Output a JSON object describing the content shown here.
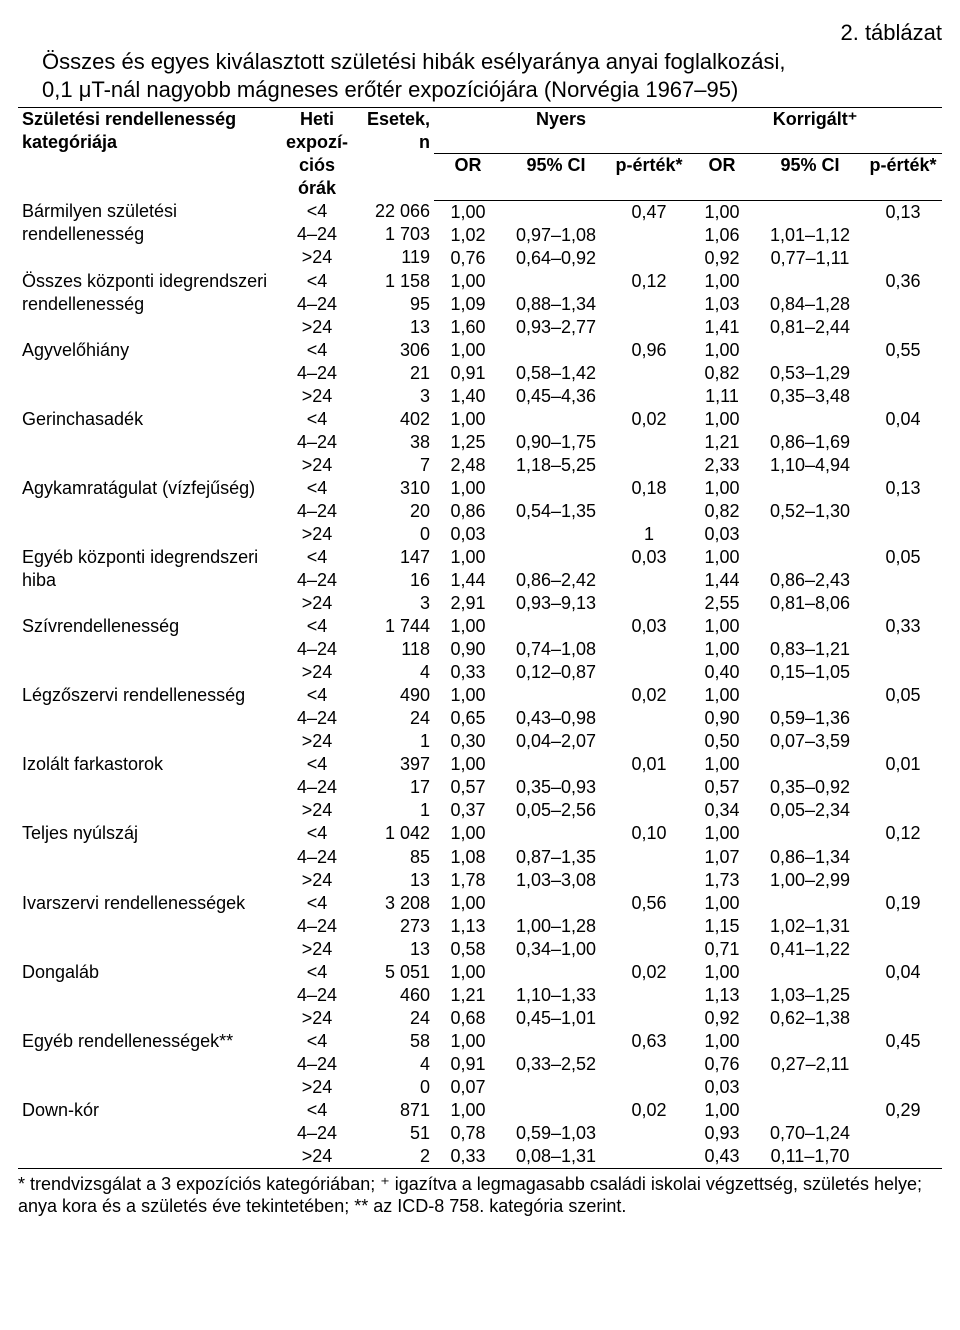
{
  "table_label": "2. táblázat",
  "title_line1": "Összes és egyes kiválasztott születési hibák esélyaránya anyai foglalkozási,",
  "title_line2": "0,1 μT-nál nagyobb mágneses erőtér expozíciójára (Norvégia 1967–95)",
  "header": {
    "category": "Születési rendellenesség\nkategóriája",
    "expo": "Heti\nexpozí-\nciós órák",
    "cases": "Esetek, n",
    "crude": "Nyers",
    "adjusted": "Korrigált⁺",
    "or": "OR",
    "ci": "95% CI",
    "p": "p-érték*"
  },
  "rows": [
    {
      "cat": "Bármilyen születési\nrendellenesség",
      "expo": [
        "<4",
        "4–24",
        ">24"
      ],
      "n": [
        "22 066",
        "1 703",
        "119"
      ],
      "cor": [
        "1,00",
        "1,02",
        "0,76"
      ],
      "cci": [
        "",
        "0,97–1,08",
        "0,64–0,92"
      ],
      "cp": [
        "0,47",
        "",
        ""
      ],
      "aor": [
        "1,00",
        "1,06",
        "0,92"
      ],
      "aci": [
        "",
        "1,01–1,12",
        "0,77–1,11"
      ],
      "ap": [
        "0,13",
        "",
        ""
      ]
    },
    {
      "cat": "Összes központi idegrendszeri\nrendellenesség",
      "expo": [
        "<4",
        "4–24",
        ">24"
      ],
      "n": [
        "1 158",
        "95",
        "13"
      ],
      "cor": [
        "1,00",
        "1,09",
        "1,60"
      ],
      "cci": [
        "",
        "0,88–1,34",
        "0,93–2,77"
      ],
      "cp": [
        "0,12",
        "",
        ""
      ],
      "aor": [
        "1,00",
        "1,03",
        "1,41"
      ],
      "aci": [
        "",
        "0,84–1,28",
        "0,81–2,44"
      ],
      "ap": [
        "0,36",
        "",
        ""
      ]
    },
    {
      "cat": "Agyvelőhiány",
      "expo": [
        "<4",
        "4–24",
        ">24"
      ],
      "n": [
        "306",
        "21",
        "3"
      ],
      "cor": [
        "1,00",
        "0,91",
        "1,40"
      ],
      "cci": [
        "",
        "0,58–1,42",
        "0,45–4,36"
      ],
      "cp": [
        "0,96",
        "",
        ""
      ],
      "aor": [
        "1,00",
        "0,82",
        "1,11"
      ],
      "aci": [
        "",
        "0,53–1,29",
        "0,35–3,48"
      ],
      "ap": [
        "0,55",
        "",
        ""
      ]
    },
    {
      "cat": "Gerinchasadék",
      "expo": [
        "<4",
        "4–24",
        ">24"
      ],
      "n": [
        "402",
        "38",
        "7"
      ],
      "cor": [
        "1,00",
        "1,25",
        "2,48"
      ],
      "cci": [
        "",
        "0,90–1,75",
        "1,18–5,25"
      ],
      "cp": [
        "0,02",
        "",
        ""
      ],
      "aor": [
        "1,00",
        "1,21",
        "2,33"
      ],
      "aci": [
        "",
        "0,86–1,69",
        "1,10–4,94"
      ],
      "ap": [
        "0,04",
        "",
        ""
      ]
    },
    {
      "cat": "Agykamratágulat (vízfejűség)",
      "expo": [
        "<4",
        "4–24",
        ">24"
      ],
      "n": [
        "310",
        "20",
        "0"
      ],
      "cor": [
        "1,00",
        "0,86",
        "0,03"
      ],
      "cci": [
        "",
        "0,54–1,35",
        ""
      ],
      "cp": [
        "0,18",
        "",
        "1"
      ],
      "aor": [
        "1,00",
        "0,82",
        "0,03"
      ],
      "aci": [
        "",
        "0,52–1,30",
        ""
      ],
      "ap": [
        "0,13",
        "",
        ""
      ]
    },
    {
      "cat": "Egyéb központi idegrendszeri\nhiba",
      "expo": [
        "<4",
        "4–24",
        ">24"
      ],
      "n": [
        "147",
        "16",
        "3"
      ],
      "cor": [
        "1,00",
        "1,44",
        "2,91"
      ],
      "cci": [
        "",
        "0,86–2,42",
        "0,93–9,13"
      ],
      "cp": [
        "0,03",
        "",
        ""
      ],
      "aor": [
        "1,00",
        "1,44",
        "2,55"
      ],
      "aci": [
        "",
        "0,86–2,43",
        "0,81–8,06"
      ],
      "ap": [
        "0,05",
        "",
        ""
      ]
    },
    {
      "cat": "Szívrendellenesség",
      "expo": [
        "<4",
        "4–24",
        ">24"
      ],
      "n": [
        "1 744",
        "118",
        "4"
      ],
      "cor": [
        "1,00",
        "0,90",
        "0,33"
      ],
      "cci": [
        "",
        "0,74–1,08",
        "0,12–0,87"
      ],
      "cp": [
        "0,03",
        "",
        ""
      ],
      "aor": [
        "1,00",
        "1,00",
        "0,40"
      ],
      "aci": [
        "",
        "0,83–1,21",
        "0,15–1,05"
      ],
      "ap": [
        "0,33",
        "",
        ""
      ]
    },
    {
      "cat": "Légzőszervi rendellenesség",
      "expo": [
        "<4",
        "4–24",
        ">24"
      ],
      "n": [
        "490",
        "24",
        "1"
      ],
      "cor": [
        "1,00",
        "0,65",
        "0,30"
      ],
      "cci": [
        "",
        "0,43–0,98",
        "0,04–2,07"
      ],
      "cp": [
        "0,02",
        "",
        ""
      ],
      "aor": [
        "1,00",
        "0,90",
        "0,50"
      ],
      "aci": [
        "",
        "0,59–1,36",
        "0,07–3,59"
      ],
      "ap": [
        "0,05",
        "",
        ""
      ]
    },
    {
      "cat": "Izolált farkastorok",
      "expo": [
        "<4",
        "4–24",
        ">24"
      ],
      "n": [
        "397",
        "17",
        "1"
      ],
      "cor": [
        "1,00",
        "0,57",
        "0,37"
      ],
      "cci": [
        "",
        "0,35–0,93",
        "0,05–2,56"
      ],
      "cp": [
        "0,01",
        "",
        ""
      ],
      "aor": [
        "1,00",
        "0,57",
        "0,34"
      ],
      "aci": [
        "",
        "0,35–0,92",
        "0,05–2,34"
      ],
      "ap": [
        "0,01",
        "",
        ""
      ]
    },
    {
      "cat": "Teljes nyúlszáj",
      "expo": [
        "<4",
        "4–24",
        ">24"
      ],
      "n": [
        "1 042",
        "85",
        "13"
      ],
      "cor": [
        "1,00",
        "1,08",
        "1,78"
      ],
      "cci": [
        "",
        "0,87–1,35",
        "1,03–3,08"
      ],
      "cp": [
        "0,10",
        "",
        ""
      ],
      "aor": [
        "1,00",
        "1,07",
        "1,73"
      ],
      "aci": [
        "",
        "0,86–1,34",
        "1,00–2,99"
      ],
      "ap": [
        "0,12",
        "",
        ""
      ]
    },
    {
      "cat": "Ivarszervi rendellenességek",
      "expo": [
        "<4",
        "4–24",
        ">24"
      ],
      "n": [
        "3 208",
        "273",
        "13"
      ],
      "cor": [
        "1,00",
        "1,13",
        "0,58"
      ],
      "cci": [
        "",
        "1,00–1,28",
        "0,34–1,00"
      ],
      "cp": [
        "0,56",
        "",
        ""
      ],
      "aor": [
        "1,00",
        "1,15",
        "0,71"
      ],
      "aci": [
        "",
        "1,02–1,31",
        "0,41–1,22"
      ],
      "ap": [
        "0,19",
        "",
        ""
      ]
    },
    {
      "cat": "Dongaláb",
      "expo": [
        "<4",
        "4–24",
        ">24"
      ],
      "n": [
        "5 051",
        "460",
        "24"
      ],
      "cor": [
        "1,00",
        "1,21",
        "0,68"
      ],
      "cci": [
        "",
        "1,10–1,33",
        "0,45–1,01"
      ],
      "cp": [
        "0,02",
        "",
        ""
      ],
      "aor": [
        "1,00",
        "1,13",
        "0,92"
      ],
      "aci": [
        "",
        "1,03–1,25",
        "0,62–1,38"
      ],
      "ap": [
        "0,04",
        "",
        ""
      ]
    },
    {
      "cat": "Egyéb rendellenességek**",
      "expo": [
        "<4",
        "4–24",
        ">24"
      ],
      "n": [
        "58",
        "4",
        "0"
      ],
      "cor": [
        "1,00",
        "0,91",
        "0,07"
      ],
      "cci": [
        "",
        "0,33–2,52",
        ""
      ],
      "cp": [
        "0,63",
        "",
        ""
      ],
      "aor": [
        "1,00",
        "0,76",
        "0,03"
      ],
      "aci": [
        "",
        "0,27–2,11",
        ""
      ],
      "ap": [
        "0,45",
        "",
        ""
      ]
    },
    {
      "cat": "Down-kór",
      "expo": [
        "<4",
        "4–24",
        ">24"
      ],
      "n": [
        "871",
        "51",
        "2"
      ],
      "cor": [
        "1,00",
        "0,78",
        "0,33"
      ],
      "cci": [
        "",
        "0,59–1,03",
        "0,08–1,31"
      ],
      "cp": [
        "0,02",
        "",
        ""
      ],
      "aor": [
        "1,00",
        "0,93",
        "0,43"
      ],
      "aci": [
        "",
        "0,70–1,24",
        "0,11–1,70"
      ],
      "ap": [
        "0,29",
        "",
        ""
      ]
    }
  ],
  "footnote": "* trendvizsgálat a 3 expozíciós kategóriában; ⁺ igazítva a legmagasabb családi iskolai végzettség, születés helye; anya kora és a születés éve tekintetében; ** az ICD-8 758. kategória szerint."
}
